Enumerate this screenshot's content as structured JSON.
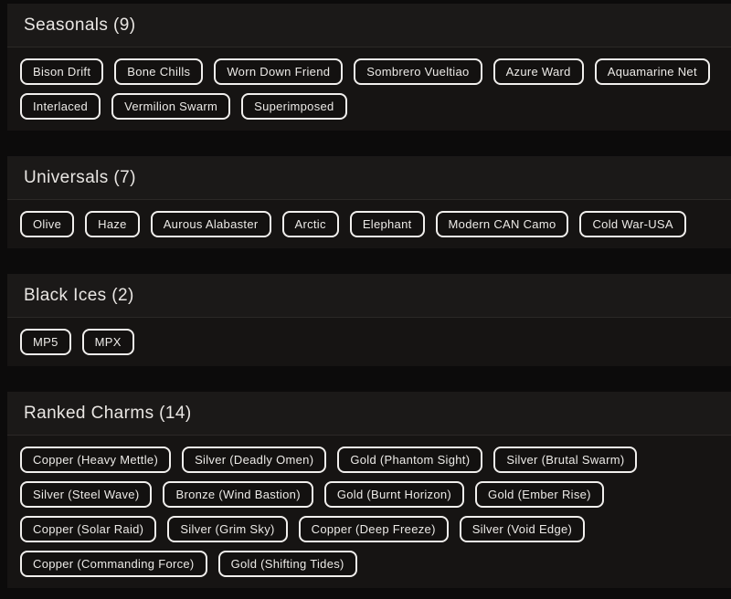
{
  "page": {
    "background_color": "#0c0b0b",
    "section_header_bg": "#1b1918",
    "section_body_bg": "#161413",
    "chip_border_color": "#f1efed",
    "chip_text_color": "#eceae7",
    "title_text_color": "#e9e6e3"
  },
  "sections": [
    {
      "id": "seasonals",
      "title": "Seasonals (9)",
      "count": 9,
      "chips": [
        "Bison Drift",
        "Bone Chills",
        "Worn Down Friend",
        "Sombrero Vueltiao",
        "Azure Ward",
        "Aquamarine Net",
        "Interlaced",
        "Vermilion Swarm",
        "Superimposed"
      ]
    },
    {
      "id": "universals",
      "title": "Universals (7)",
      "count": 7,
      "chips": [
        "Olive",
        "Haze",
        "Aurous Alabaster",
        "Arctic",
        "Elephant",
        "Modern CAN Camo",
        "Cold War-USA"
      ]
    },
    {
      "id": "black-ices",
      "title": "Black Ices (2)",
      "count": 2,
      "chips": [
        "MP5",
        "MPX"
      ]
    },
    {
      "id": "ranked-charms",
      "title": "Ranked Charms (14)",
      "count": 14,
      "chips": [
        "Copper (Heavy Mettle)",
        "Silver (Deadly Omen)",
        "Gold (Phantom Sight)",
        "Silver (Brutal Swarm)",
        "Silver (Steel Wave)",
        "Bronze (Wind Bastion)",
        "Gold (Burnt Horizon)",
        "Gold (Ember Rise)",
        "Copper (Solar Raid)",
        "Silver (Grim Sky)",
        "Copper (Deep Freeze)",
        "Silver (Void Edge)",
        "Copper (Commanding Force)",
        "Gold (Shifting Tides)"
      ]
    }
  ]
}
